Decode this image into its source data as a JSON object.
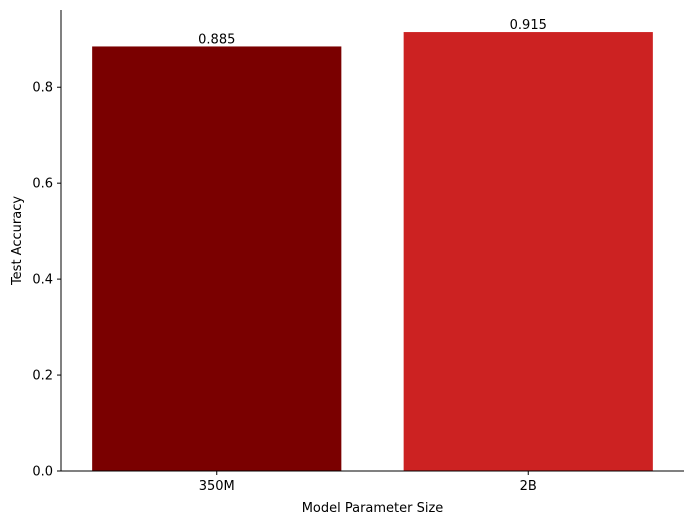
{
  "chart_data": {
    "type": "bar",
    "title": "",
    "xlabel": "Model Parameter Size",
    "ylabel": "Test Accuracy",
    "categories": [
      "350M",
      "2B"
    ],
    "values": [
      0.885,
      0.915
    ],
    "value_labels": [
      "0.885",
      "0.915"
    ],
    "bar_colors": [
      "#7a0000",
      "#cc2222"
    ],
    "ylim": [
      0,
      0.961
    ],
    "yticks": [
      0.0,
      0.2,
      0.4,
      0.6,
      0.8
    ],
    "ytick_labels": [
      "0.0",
      "0.2",
      "0.4",
      "0.6",
      "0.8"
    ],
    "grid": false,
    "spines": "left-bottom"
  }
}
